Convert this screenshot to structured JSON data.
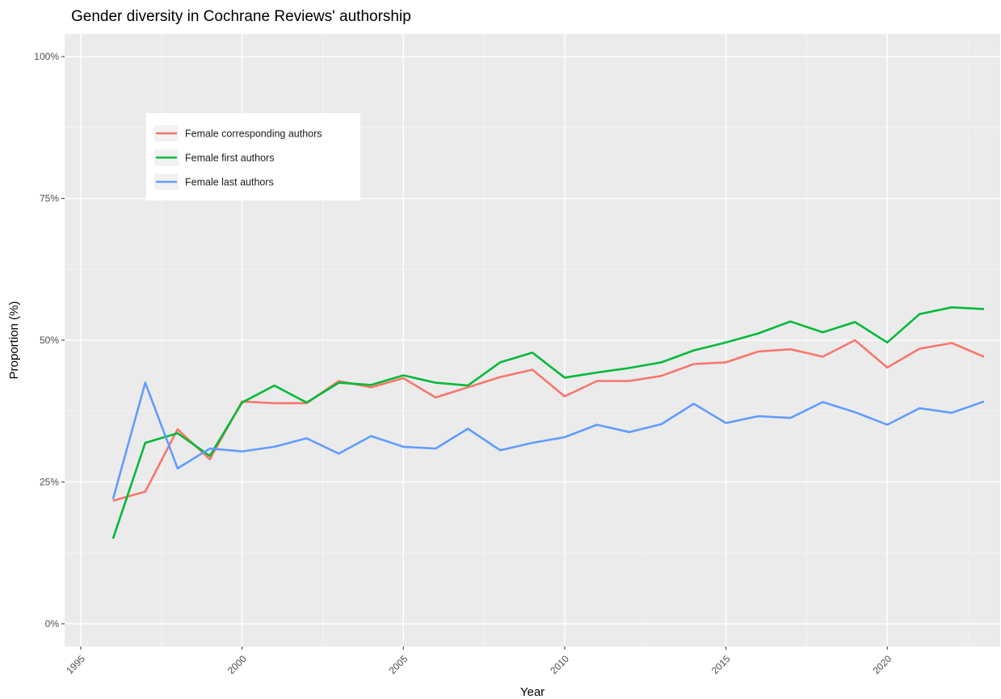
{
  "chart_data": {
    "type": "line",
    "title": "Gender diversity in Cochrane Reviews' authorship",
    "xlabel": "Year",
    "ylabel": "Proportion (%)",
    "xlim": [
      1994.5,
      2023.5
    ],
    "ylim": [
      -4,
      104
    ],
    "x_ticks": [
      1995,
      2000,
      2005,
      2010,
      2015,
      2020
    ],
    "x_tick_labels": [
      "1995",
      "2000",
      "2005",
      "2010",
      "2015",
      "2020"
    ],
    "y_ticks": [
      0,
      25,
      50,
      75,
      100
    ],
    "y_tick_labels": [
      "0%",
      "25%",
      "50%",
      "75%",
      "100%"
    ],
    "grid": true,
    "legend_position": "top-left",
    "x": [
      1996,
      1997,
      1998,
      1999,
      2000,
      2001,
      2002,
      2003,
      2004,
      2005,
      2006,
      2007,
      2008,
      2009,
      2010,
      2011,
      2012,
      2013,
      2014,
      2015,
      2016,
      2017,
      2018,
      2019,
      2020,
      2021,
      2022,
      2023
    ],
    "series": [
      {
        "name": "Female corresponding authors",
        "color": "#F8766D",
        "values": [
          21.7,
          23.3,
          34.3,
          29.0,
          39.2,
          38.9,
          38.9,
          42.8,
          41.7,
          43.3,
          39.9,
          41.7,
          43.5,
          44.8,
          40.1,
          42.8,
          42.8,
          43.7,
          45.8,
          46.1,
          48.0,
          48.4,
          47.1,
          50.0,
          45.2,
          48.5,
          49.5,
          47.1
        ]
      },
      {
        "name": "Female first authors",
        "color": "#00BA38",
        "values": [
          15.0,
          31.9,
          33.6,
          29.6,
          39.0,
          42.0,
          39.0,
          42.5,
          42.1,
          43.8,
          42.5,
          42.0,
          46.1,
          47.8,
          43.4,
          44.3,
          45.1,
          46.1,
          48.2,
          49.6,
          51.2,
          53.3,
          51.4,
          53.2,
          49.6,
          54.6,
          55.8,
          55.5
        ]
      },
      {
        "name": "Female last authors",
        "color": "#619CFF",
        "values": [
          22.0,
          42.5,
          27.4,
          30.9,
          30.4,
          31.2,
          32.7,
          30.0,
          33.1,
          31.2,
          30.9,
          34.4,
          30.6,
          31.9,
          32.9,
          35.1,
          33.8,
          35.2,
          38.8,
          35.4,
          36.6,
          36.3,
          39.1,
          37.3,
          35.1,
          38.0,
          37.2,
          39.2
        ]
      }
    ]
  }
}
